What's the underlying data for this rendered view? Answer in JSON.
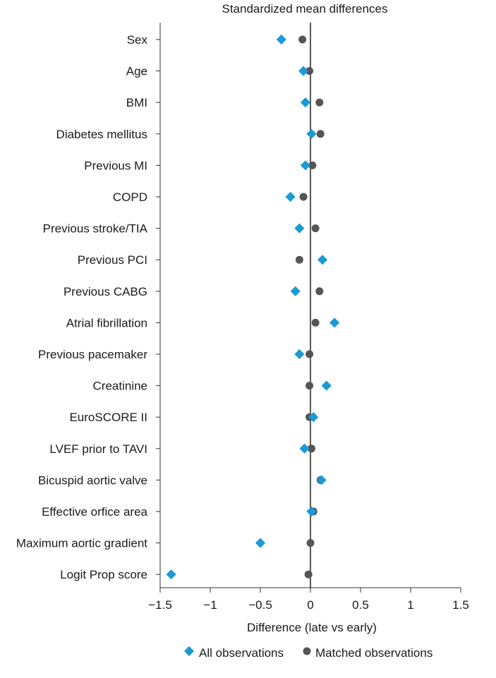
{
  "chart_data": {
    "type": "scatter",
    "title": "Standardized mean differences",
    "xlabel": "Difference (late vs early)",
    "xlim": [
      -1.5,
      1.5
    ],
    "xticks": [
      -1.5,
      -1,
      -0.5,
      0,
      0.5,
      1,
      1.5
    ],
    "xtick_labels": [
      "−1.5",
      "−1",
      "−0.5",
      "0",
      "0.5",
      "1",
      "1.5"
    ],
    "categories": [
      "Sex",
      "Age",
      "BMI",
      "Diabetes mellitus",
      "Previous MI",
      "COPD",
      "Previous stroke/TIA",
      "Previous PCI",
      "Previous CABG",
      "Atrial fibrillation",
      "Previous pacemaker",
      "Creatinine",
      "EuroSCORE II",
      "LVEF prior to TAVI",
      "Bicuspid aortic valve",
      "Effective orfice area",
      "Maximum aortic gradient",
      "Logit Prop score"
    ],
    "series": [
      {
        "name": "All observations",
        "marker": "diamond",
        "color": "#1a9ad6",
        "values": [
          -0.29,
          -0.07,
          -0.05,
          0.01,
          -0.05,
          -0.2,
          -0.11,
          0.12,
          -0.15,
          0.24,
          -0.11,
          0.16,
          0.03,
          -0.06,
          0.11,
          0.01,
          -0.5,
          -1.39
        ]
      },
      {
        "name": "Matched observations",
        "marker": "circle",
        "color": "#555555",
        "values": [
          -0.08,
          -0.01,
          0.09,
          0.1,
          0.02,
          -0.07,
          0.05,
          -0.11,
          0.09,
          0.05,
          -0.01,
          -0.01,
          -0.01,
          0.01,
          0.1,
          0.03,
          0.0,
          -0.02
        ]
      }
    ],
    "reference_line": 0,
    "legend_position": "bottom"
  }
}
